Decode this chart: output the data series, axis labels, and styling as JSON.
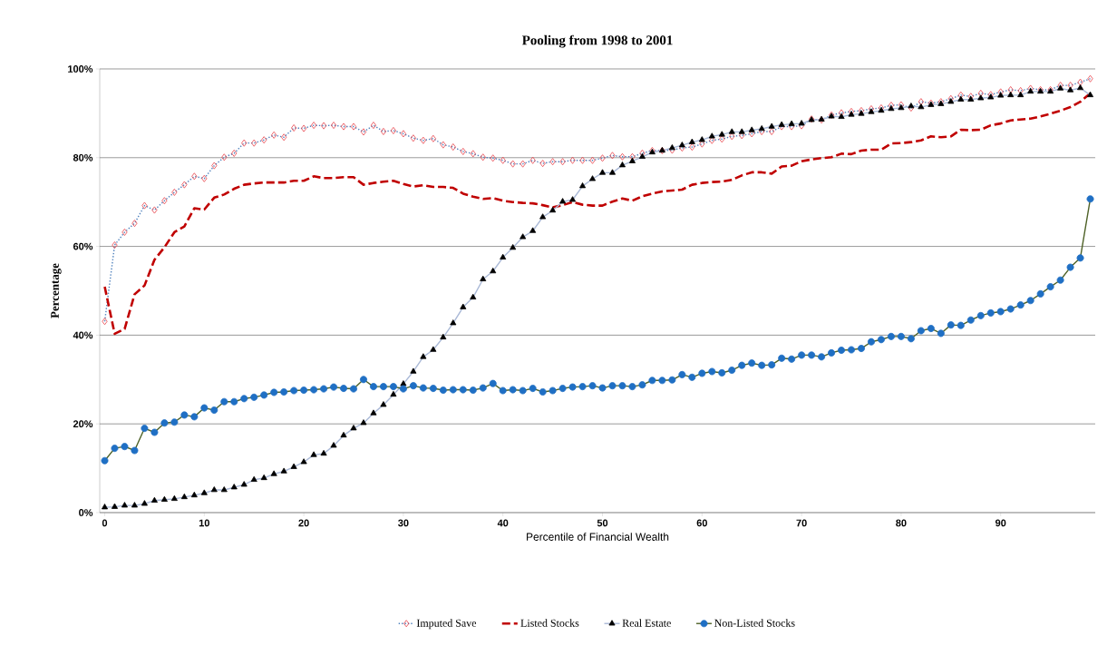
{
  "chart_data": {
    "type": "line",
    "title": "Pooling from 1998 to 2001",
    "xlabel": "Percentile of Financial Wealth",
    "ylabel": "Percentage",
    "x": [
      0,
      1,
      2,
      3,
      4,
      5,
      6,
      7,
      8,
      9,
      10,
      11,
      12,
      13,
      14,
      15,
      16,
      17,
      18,
      19,
      20,
      21,
      22,
      23,
      24,
      25,
      26,
      27,
      28,
      29,
      30,
      31,
      32,
      33,
      34,
      35,
      36,
      37,
      38,
      39,
      40,
      41,
      42,
      43,
      44,
      45,
      46,
      47,
      48,
      49,
      50,
      51,
      52,
      53,
      54,
      55,
      56,
      57,
      58,
      59,
      60,
      61,
      62,
      63,
      64,
      65,
      66,
      67,
      68,
      69,
      70,
      71,
      72,
      73,
      74,
      75,
      76,
      77,
      78,
      79,
      80,
      81,
      82,
      83,
      84,
      85,
      86,
      87,
      88,
      89,
      90,
      91,
      92,
      93,
      94,
      95,
      96,
      97,
      98,
      99
    ],
    "xlim": [
      -0.5,
      99.5
    ],
    "xticks": [
      0,
      10,
      20,
      30,
      40,
      50,
      60,
      70,
      80,
      90
    ],
    "ylim": [
      0,
      100
    ],
    "yticks": [
      {
        "value": 0,
        "label": "0%"
      },
      {
        "value": 20,
        "label": "20%"
      },
      {
        "value": 40,
        "label": "40%"
      },
      {
        "value": 60,
        "label": "60%"
      },
      {
        "value": 80,
        "label": "80%"
      },
      {
        "value": 100,
        "label": "100%"
      }
    ],
    "grid": "y",
    "legend": "bottom",
    "series": [
      {
        "name": "Imputed Save",
        "color": "#e8434a",
        "marker": "diamond",
        "line_style": "dotted",
        "values": [
          43.1,
          60.3,
          63.2,
          65.2,
          69.2,
          68.2,
          70.3,
          72.2,
          73.9,
          75.8,
          75.3,
          78.2,
          80.1,
          81.0,
          83.3,
          83.3,
          84.0,
          85.1,
          84.6,
          86.7,
          86.6,
          87.3,
          87.2,
          87.3,
          87.0,
          87.0,
          85.8,
          87.3,
          85.9,
          86.1,
          85.4,
          84.4,
          83.9,
          84.3,
          82.9,
          82.4,
          81.4,
          80.9,
          80.1,
          79.9,
          79.4,
          78.6,
          78.6,
          79.4,
          78.7,
          79.1,
          79.1,
          79.4,
          79.4,
          79.4,
          79.9,
          80.5,
          80.2,
          80.2,
          81.0,
          81.6,
          81.6,
          81.7,
          82.2,
          82.4,
          83.1,
          83.9,
          84.2,
          84.8,
          85.0,
          85.4,
          85.9,
          85.9,
          87.0,
          87.0,
          87.2,
          88.7,
          88.5,
          89.6,
          90.1,
          90.4,
          90.6,
          91.0,
          91.2,
          91.8,
          91.9,
          91.2,
          92.6,
          92.3,
          92.6,
          93.3,
          94.1,
          93.8,
          94.5,
          94.2,
          94.8,
          95.3,
          95.1,
          95.6,
          95.3,
          95.3,
          96.3,
          96.3,
          97.0,
          97.8
        ]
      },
      {
        "name": "Listed Stocks",
        "color": "#c00000",
        "marker": "none",
        "line_style": "dashed",
        "values": [
          50.9,
          40.3,
          41.4,
          49.2,
          51.2,
          57.0,
          59.8,
          63.2,
          64.5,
          68.6,
          68.3,
          71.0,
          71.7,
          73.0,
          73.9,
          74.2,
          74.4,
          74.4,
          74.4,
          74.8,
          74.8,
          75.8,
          75.4,
          75.4,
          75.6,
          75.6,
          73.9,
          74.3,
          74.6,
          74.8,
          74.1,
          73.5,
          73.8,
          73.4,
          73.4,
          73.2,
          71.9,
          71.2,
          70.7,
          70.9,
          70.3,
          70.0,
          69.8,
          69.7,
          69.3,
          68.8,
          69.3,
          70.0,
          69.4,
          69.2,
          69.2,
          70.1,
          70.8,
          70.3,
          71.3,
          71.9,
          72.4,
          72.6,
          72.8,
          73.9,
          74.3,
          74.5,
          74.6,
          75.0,
          76.0,
          76.7,
          76.7,
          76.4,
          78.0,
          78.2,
          79.2,
          79.6,
          79.9,
          80.1,
          80.9,
          80.8,
          81.6,
          81.8,
          81.8,
          83.2,
          83.3,
          83.5,
          83.9,
          84.8,
          84.6,
          84.8,
          86.3,
          86.2,
          86.3,
          87.3,
          87.7,
          88.4,
          88.6,
          88.8,
          89.3,
          89.9,
          90.6,
          91.4,
          92.6,
          94.5
        ]
      },
      {
        "name": "Real Estate",
        "color": "#000000",
        "marker": "triangle",
        "line_style": "solid",
        "values": [
          1.2,
          1.3,
          1.6,
          1.6,
          2.0,
          2.7,
          2.9,
          3.1,
          3.5,
          3.9,
          4.4,
          5.1,
          5.1,
          5.7,
          6.3,
          7.4,
          7.8,
          8.7,
          9.3,
          10.3,
          11.4,
          13.0,
          13.3,
          15.1,
          17.4,
          19.0,
          20.2,
          22.4,
          24.3,
          26.6,
          29.0,
          31.8,
          35.1,
          36.7,
          39.5,
          42.7,
          46.3,
          48.5,
          52.6,
          54.4,
          57.5,
          59.7,
          62.1,
          63.5,
          66.6,
          68.1,
          70.1,
          70.5,
          73.6,
          75.2,
          76.6,
          76.6,
          78.3,
          79.2,
          80.2,
          81.2,
          81.6,
          82.2,
          82.8,
          83.5,
          84.0,
          84.8,
          85.2,
          85.8,
          85.8,
          86.2,
          86.5,
          87.0,
          87.4,
          87.6,
          87.7,
          88.5,
          88.6,
          89.3,
          89.2,
          89.7,
          89.9,
          90.3,
          90.6,
          91.0,
          91.2,
          91.6,
          91.4,
          91.9,
          92.1,
          92.6,
          93.1,
          93.1,
          93.4,
          93.6,
          94.0,
          94.1,
          94.1,
          94.9,
          94.9,
          94.9,
          95.6,
          95.2,
          95.7,
          94.1
        ]
      },
      {
        "name": "Non-Listed Stocks",
        "color": "#1f6fc4",
        "marker": "circle",
        "line_style": "solid",
        "values": [
          11.7,
          14.5,
          14.9,
          14.0,
          19.0,
          18.1,
          20.2,
          20.4,
          22.0,
          21.6,
          23.6,
          23.1,
          25.0,
          25.0,
          25.7,
          26.0,
          26.5,
          27.1,
          27.2,
          27.5,
          27.6,
          27.7,
          27.9,
          28.3,
          28.0,
          27.9,
          30.0,
          28.4,
          28.4,
          28.4,
          27.9,
          28.6,
          28.1,
          28.0,
          27.6,
          27.7,
          27.7,
          27.6,
          28.1,
          29.1,
          27.5,
          27.7,
          27.5,
          28.0,
          27.2,
          27.5,
          28.0,
          28.3,
          28.4,
          28.6,
          28.1,
          28.6,
          28.6,
          28.4,
          28.8,
          29.8,
          29.8,
          29.9,
          31.1,
          30.5,
          31.4,
          31.8,
          31.5,
          32.1,
          33.2,
          33.7,
          33.2,
          33.3,
          34.8,
          34.6,
          35.5,
          35.5,
          35.1,
          36.0,
          36.6,
          36.7,
          37.0,
          38.5,
          39.0,
          39.7,
          39.7,
          39.2,
          41.0,
          41.5,
          40.4,
          42.3,
          42.2,
          43.4,
          44.4,
          45.0,
          45.3,
          45.9,
          46.8,
          47.8,
          49.3,
          50.9,
          52.4,
          55.3,
          57.4,
          70.7
        ]
      }
    ]
  }
}
